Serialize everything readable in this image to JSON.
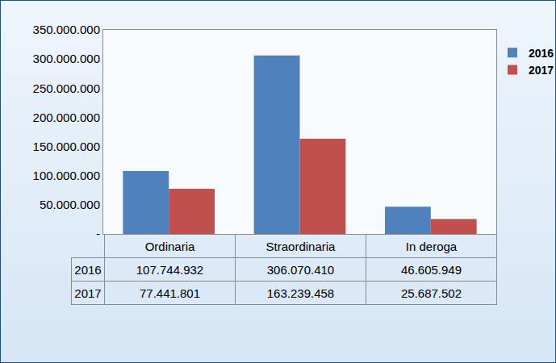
{
  "chart_data": {
    "type": "bar",
    "categories": [
      "Ordinaria",
      "Straordinaria",
      "In deroga"
    ],
    "series": [
      {
        "name": "2016",
        "color": "#4f81bd",
        "values": [
          107744932,
          306070410,
          46605949
        ],
        "value_labels": [
          "107.744.932",
          "306.070.410",
          "46.605.949"
        ]
      },
      {
        "name": "2017",
        "color": "#c0504d",
        "values": [
          77441801,
          163239458,
          25687502
        ],
        "value_labels": [
          "77.441.801",
          "163.239.458",
          "25.687.502"
        ]
      }
    ],
    "ylim": [
      0,
      350000000
    ],
    "yticks": [
      {
        "value": 0,
        "label": "-"
      },
      {
        "value": 50000000,
        "label": "50.000.000"
      },
      {
        "value": 100000000,
        "label": "100.000.000"
      },
      {
        "value": 150000000,
        "label": "150.000.000"
      },
      {
        "value": 200000000,
        "label": "200.000.000"
      },
      {
        "value": 250000000,
        "label": "250.000.000"
      },
      {
        "value": 300000000,
        "label": "300.000.000"
      },
      {
        "value": 350000000,
        "label": "350.000.000"
      }
    ],
    "grid": false,
    "legend": "right"
  }
}
